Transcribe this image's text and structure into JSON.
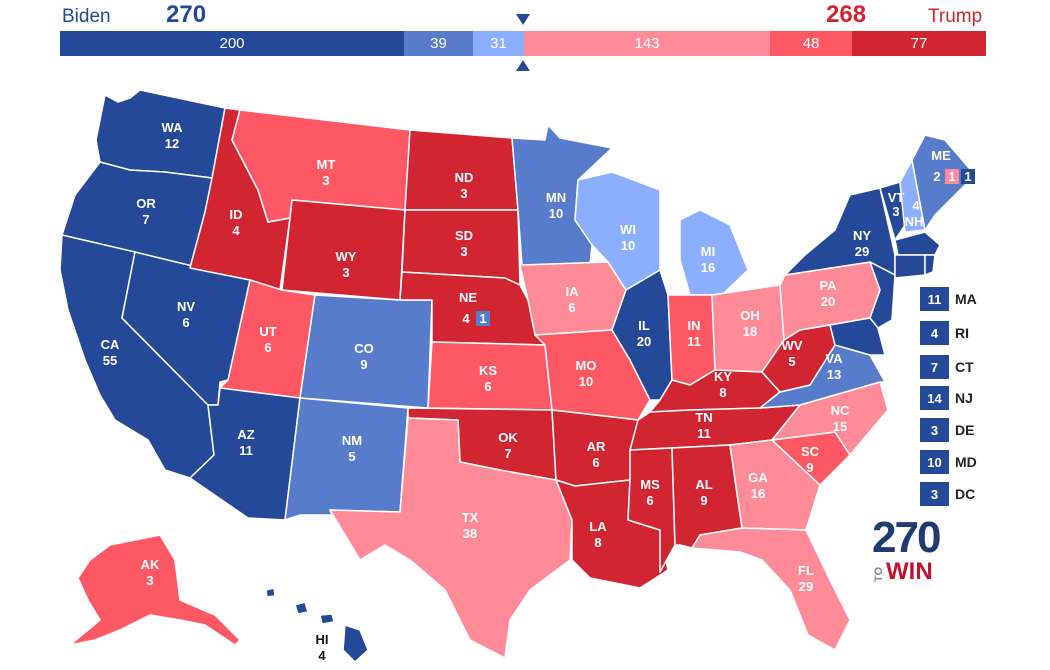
{
  "header": {
    "biden_name": "Biden",
    "biden_total": "270",
    "trump_name": "Trump",
    "trump_total": "268"
  },
  "bar": [
    {
      "value": "200",
      "color": "#244999"
    },
    {
      "value": "39",
      "color": "#577ccc"
    },
    {
      "value": "31",
      "color": "#8aafff"
    },
    {
      "value": "143",
      "color": "#ff8b98"
    },
    {
      "value": "48",
      "color": "#ff5865"
    },
    {
      "value": "77",
      "color": "#d22532"
    }
  ],
  "colors": {
    "safe_d": "#244999",
    "likely_d": "#577ccc",
    "lean_d": "#8aafff",
    "lean_r": "#ff8b98",
    "likely_r": "#ff5865",
    "safe_r": "#d22532"
  },
  "states": {
    "WA": {
      "code": "WA",
      "ev": "12"
    },
    "OR": {
      "code": "OR",
      "ev": "7"
    },
    "CA": {
      "code": "CA",
      "ev": "55"
    },
    "NV": {
      "code": "NV",
      "ev": "6"
    },
    "ID": {
      "code": "ID",
      "ev": "4"
    },
    "MT": {
      "code": "MT",
      "ev": "3"
    },
    "WY": {
      "code": "WY",
      "ev": "3"
    },
    "UT": {
      "code": "UT",
      "ev": "6"
    },
    "AZ": {
      "code": "AZ",
      "ev": "11"
    },
    "CO": {
      "code": "CO",
      "ev": "9"
    },
    "NM": {
      "code": "NM",
      "ev": "5"
    },
    "ND": {
      "code": "ND",
      "ev": "3"
    },
    "SD": {
      "code": "SD",
      "ev": "3"
    },
    "NE": {
      "code": "NE",
      "ev": "4",
      "extra": "1"
    },
    "KS": {
      "code": "KS",
      "ev": "6"
    },
    "OK": {
      "code": "OK",
      "ev": "7"
    },
    "TX": {
      "code": "TX",
      "ev": "38"
    },
    "MN": {
      "code": "MN",
      "ev": "10"
    },
    "IA": {
      "code": "IA",
      "ev": "6"
    },
    "MO": {
      "code": "MO",
      "ev": "10"
    },
    "AR": {
      "code": "AR",
      "ev": "6"
    },
    "LA": {
      "code": "LA",
      "ev": "8"
    },
    "WI": {
      "code": "WI",
      "ev": "10"
    },
    "IL": {
      "code": "IL",
      "ev": "20"
    },
    "MI": {
      "code": "MI",
      "ev": "16"
    },
    "IN": {
      "code": "IN",
      "ev": "11"
    },
    "OH": {
      "code": "OH",
      "ev": "18"
    },
    "KY": {
      "code": "KY",
      "ev": "8"
    },
    "TN": {
      "code": "TN",
      "ev": "11"
    },
    "MS": {
      "code": "MS",
      "ev": "6"
    },
    "AL": {
      "code": "AL",
      "ev": "9"
    },
    "GA": {
      "code": "GA",
      "ev": "16"
    },
    "FL": {
      "code": "FL",
      "ev": "29"
    },
    "SC": {
      "code": "SC",
      "ev": "9"
    },
    "NC": {
      "code": "NC",
      "ev": "15"
    },
    "VA": {
      "code": "VA",
      "ev": "13"
    },
    "WV": {
      "code": "WV",
      "ev": "5"
    },
    "PA": {
      "code": "PA",
      "ev": "20"
    },
    "NY": {
      "code": "NY",
      "ev": "29"
    },
    "VT": {
      "code": "VT",
      "ev": "3"
    },
    "NH": {
      "code": "NH",
      "ev": "4"
    },
    "ME": {
      "code": "ME",
      "ev": "2",
      "d1": "1",
      "d2": "1"
    },
    "AK": {
      "code": "AK",
      "ev": "3"
    },
    "HI": {
      "code": "HI",
      "ev": "4"
    }
  },
  "small_states": [
    {
      "ev": "11",
      "code": "MA"
    },
    {
      "ev": "4",
      "code": "RI"
    },
    {
      "ev": "7",
      "code": "CT"
    },
    {
      "ev": "14",
      "code": "NJ"
    },
    {
      "ev": "3",
      "code": "DE"
    },
    {
      "ev": "10",
      "code": "MD"
    },
    {
      "ev": "3",
      "code": "DC"
    }
  ],
  "logo": {
    "num": "270",
    "to": "TO",
    "win": "WIN"
  }
}
